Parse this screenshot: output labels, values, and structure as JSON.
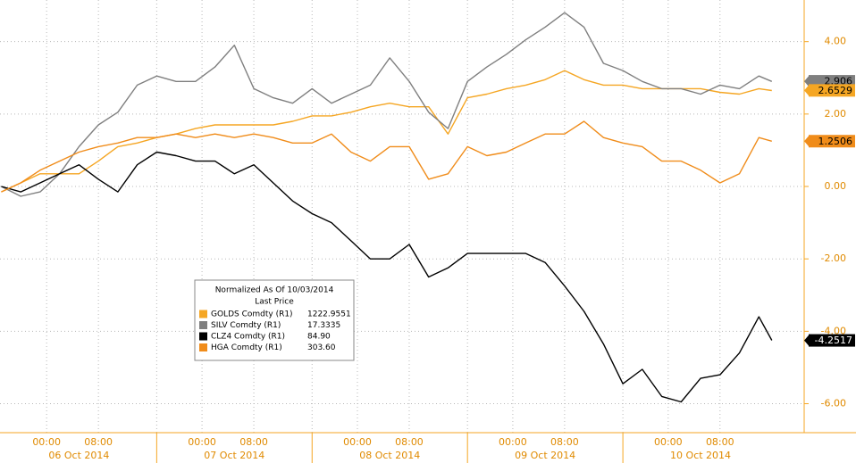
{
  "chart_data": {
    "type": "line",
    "legend_title": "Normalized As Of 10/03/2014",
    "legend_subtitle": "Last Price",
    "x": [
      -7,
      -4,
      -1,
      2,
      5,
      8,
      11,
      14,
      17,
      20,
      23,
      26,
      29,
      32,
      35,
      38,
      41,
      44,
      47,
      50,
      53,
      56,
      59,
      62,
      65,
      68,
      71,
      74,
      77,
      80,
      83,
      86,
      89,
      92,
      95,
      98,
      101,
      104,
      107,
      110,
      112
    ],
    "xlim": [
      -7.2,
      117
    ],
    "xticks": [
      {
        "value": 0,
        "label": "00:00"
      },
      {
        "value": 8,
        "label": "08:00"
      },
      {
        "value": 24,
        "label": "00:00"
      },
      {
        "value": 32,
        "label": "08:00"
      },
      {
        "value": 48,
        "label": "00:00"
      },
      {
        "value": 56,
        "label": "08:00"
      },
      {
        "value": 72,
        "label": "00:00"
      },
      {
        "value": 80,
        "label": "08:00"
      },
      {
        "value": 96,
        "label": "00:00"
      },
      {
        "value": 104,
        "label": "08:00"
      }
    ],
    "day_ticks": [
      {
        "value": 5,
        "label": "06 Oct 2014"
      },
      {
        "value": 29,
        "label": "07 Oct 2014"
      },
      {
        "value": 53,
        "label": "08 Oct 2014"
      },
      {
        "value": 77,
        "label": "09 Oct 2014"
      },
      {
        "value": 101,
        "label": "10 Oct 2014"
      }
    ],
    "day_breaks": [
      17,
      41,
      65,
      89
    ],
    "ylim": [
      -6.8,
      5.15
    ],
    "yticks": [
      {
        "value": 4,
        "label": "4.00"
      },
      {
        "value": 2,
        "label": "2.00"
      },
      {
        "value": 0,
        "label": "0.00"
      },
      {
        "value": -2,
        "label": "-2.00"
      },
      {
        "value": -4,
        "label": "-4.00"
      },
      {
        "value": -6,
        "label": "-6.00"
      }
    ],
    "grid": true,
    "series": [
      {
        "name": "GOLDS Comdty  (R1)",
        "last_price": "1222.9551",
        "color": "#f5a623",
        "end_value": 2.6529,
        "values": [
          -0.15,
          0.1,
          0.35,
          0.35,
          0.35,
          0.7,
          1.1,
          1.2,
          1.35,
          1.45,
          1.6,
          1.7,
          1.7,
          1.7,
          1.7,
          1.8,
          1.95,
          1.95,
          2.05,
          2.2,
          2.3,
          2.2,
          2.2,
          1.45,
          2.45,
          2.55,
          2.7,
          2.8,
          2.95,
          3.2,
          2.95,
          2.8,
          2.8,
          2.7,
          2.7,
          2.7,
          2.7,
          2.6,
          2.55,
          2.7,
          2.65
        ]
      },
      {
        "name": "SILV Comdty  (R1)",
        "last_price": "17.3335",
        "color": "#7f7f7f",
        "end_value": 2.906,
        "values": [
          0,
          -0.27,
          -0.15,
          0.35,
          1.1,
          1.7,
          2.05,
          2.8,
          3.05,
          2.9,
          2.9,
          3.3,
          3.9,
          2.7,
          2.45,
          2.3,
          2.7,
          2.3,
          2.55,
          2.8,
          3.55,
          2.9,
          2.05,
          1.6,
          2.9,
          3.3,
          3.65,
          4.05,
          4.4,
          4.8,
          4.4,
          3.4,
          3.2,
          2.9,
          2.7,
          2.7,
          2.55,
          2.8,
          2.7,
          3.05,
          2.9
        ]
      },
      {
        "name": "CLZ4 Comdty  (R1)",
        "last_price": "84.90",
        "color": "#000000",
        "end_value": -4.2517,
        "values": [
          0,
          -0.15,
          0.1,
          0.35,
          0.6,
          0.2,
          -0.15,
          0.6,
          0.95,
          0.85,
          0.7,
          0.7,
          0.35,
          0.6,
          0.1,
          -0.4,
          -0.75,
          -1,
          -1.5,
          -2,
          -2,
          -1.6,
          -2.5,
          -2.25,
          -1.85,
          -1.85,
          -1.85,
          -1.85,
          -2.1,
          -2.75,
          -3.45,
          -4.35,
          -5.45,
          -5.05,
          -5.8,
          -5.95,
          -5.3,
          -5.2,
          -4.6,
          -3.6,
          -4.25
        ]
      },
      {
        "name": "HGA Comdty  (R1)",
        "last_price": "303.60",
        "color": "#f08c1a",
        "end_value": 1.2506,
        "values": [
          -0.15,
          0.1,
          0.45,
          0.7,
          0.95,
          1.1,
          1.2,
          1.35,
          1.35,
          1.45,
          1.35,
          1.45,
          1.35,
          1.45,
          1.35,
          1.2,
          1.2,
          1.45,
          0.95,
          0.7,
          1.1,
          1.1,
          0.2,
          0.35,
          1.1,
          0.85,
          0.95,
          1.2,
          1.45,
          1.45,
          1.8,
          1.35,
          1.2,
          1.1,
          0.7,
          0.7,
          0.45,
          0.1,
          0.35,
          1.35,
          1.25
        ]
      }
    ]
  }
}
